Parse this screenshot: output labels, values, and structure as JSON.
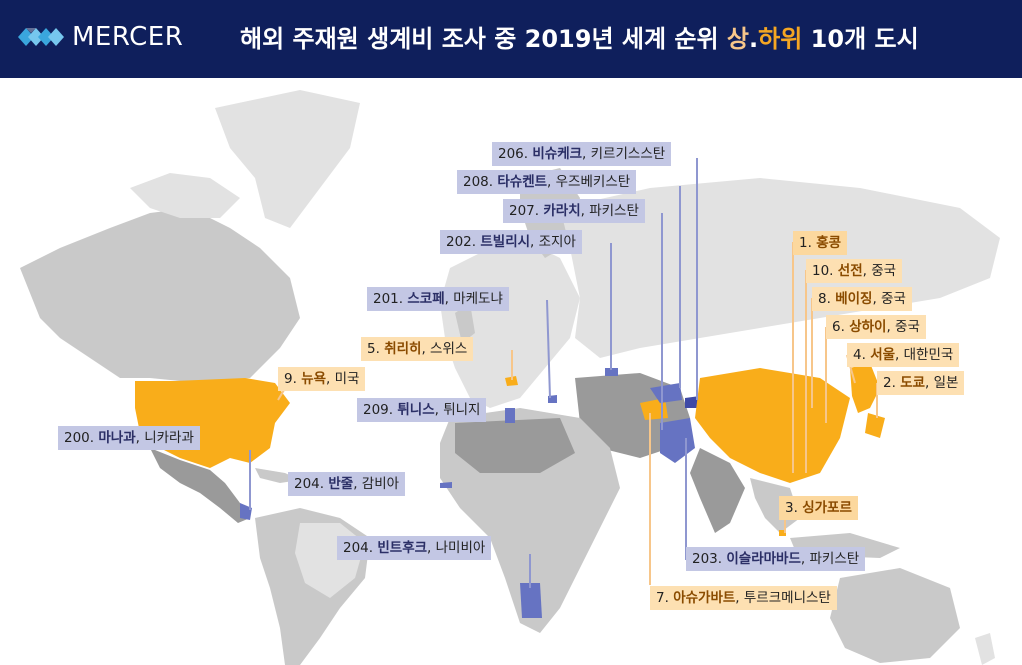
{
  "header": {
    "logo_text": "MERCER",
    "title_prefix": "해외 주재원 생계비 조사 중 2019년 세계 순위 ",
    "title_top": "상",
    "title_dot": ".",
    "title_bottom": "하위",
    "title_suffix": " 10개 도시"
  },
  "colors": {
    "header_bg": "#0f1f5c",
    "top10": "#f9ad1a",
    "bottom10": "#6673c2",
    "land_light": "#e2e2e2",
    "land_mid": "#c9c9c9",
    "land_dark": "#9a9a9a"
  },
  "top_cities": [
    {
      "rank": "1.",
      "city": "홍콩",
      "country": ""
    },
    {
      "rank": "2.",
      "city": "도쿄",
      "country": "일본"
    },
    {
      "rank": "3.",
      "city": "싱가포르",
      "country": ""
    },
    {
      "rank": "4.",
      "city": "서울",
      "country": "대한민국"
    },
    {
      "rank": "5.",
      "city": "취리히",
      "country": "스위스"
    },
    {
      "rank": "6.",
      "city": "상하이",
      "country": "중국"
    },
    {
      "rank": "7.",
      "city": "아슈가바트",
      "country": "투르크메니스탄"
    },
    {
      "rank": "8.",
      "city": "베이징",
      "country": "중국"
    },
    {
      "rank": "9.",
      "city": "뉴욕",
      "country": "미국"
    },
    {
      "rank": "10.",
      "city": "선전",
      "country": "중국"
    }
  ],
  "bottom_cities": [
    {
      "rank": "200.",
      "city": "마나과",
      "country": "니카라과"
    },
    {
      "rank": "201.",
      "city": "스코페",
      "country": "마케도냐"
    },
    {
      "rank": "202.",
      "city": "트빌리시",
      "country": "조지아"
    },
    {
      "rank": "203.",
      "city": "이슬라마바드",
      "country": "파키스탄"
    },
    {
      "rank": "204.",
      "city": "반줄",
      "country": "감비아"
    },
    {
      "rank": "204.",
      "city": "빈트후크",
      "country": "나미비아"
    },
    {
      "rank": "206.",
      "city": "비슈케크",
      "country": "키르기스스탄"
    },
    {
      "rank": "207.",
      "city": "카라치",
      "country": "파키스탄"
    },
    {
      "rank": "208.",
      "city": "타슈켄트",
      "country": "우즈베키스탄"
    },
    {
      "rank": "209.",
      "city": "튀니스",
      "country": "튀니지"
    }
  ]
}
